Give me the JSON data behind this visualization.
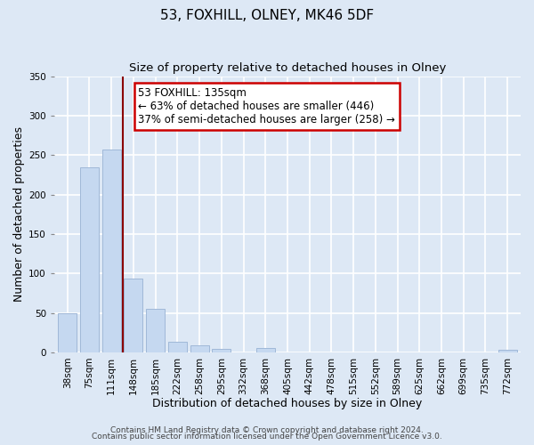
{
  "title": "53, FOXHILL, OLNEY, MK46 5DF",
  "subtitle": "Size of property relative to detached houses in Olney",
  "xlabel": "Distribution of detached houses by size in Olney",
  "ylabel": "Number of detached properties",
  "categories": [
    "38sqm",
    "75sqm",
    "111sqm",
    "148sqm",
    "185sqm",
    "222sqm",
    "258sqm",
    "295sqm",
    "332sqm",
    "368sqm",
    "405sqm",
    "442sqm",
    "478sqm",
    "515sqm",
    "552sqm",
    "589sqm",
    "625sqm",
    "662sqm",
    "699sqm",
    "735sqm",
    "772sqm"
  ],
  "values": [
    50,
    235,
    257,
    93,
    55,
    13,
    9,
    4,
    0,
    5,
    0,
    0,
    0,
    0,
    0,
    0,
    0,
    0,
    0,
    0,
    3
  ],
  "bar_color": "#c5d8f0",
  "bar_edge_color": "#a0b8d8",
  "vline_color": "#8b0000",
  "vline_x_index": 3,
  "annotation_title": "53 FOXHILL: 135sqm",
  "annotation_line1": "← 63% of detached houses are smaller (446)",
  "annotation_line2": "37% of semi-detached houses are larger (258) →",
  "annotation_box_color": "#ffffff",
  "annotation_box_edge_color": "#cc0000",
  "ylim": [
    0,
    350
  ],
  "yticks": [
    0,
    50,
    100,
    150,
    200,
    250,
    300,
    350
  ],
  "footer1": "Contains HM Land Registry data © Crown copyright and database right 2024.",
  "footer2": "Contains public sector information licensed under the Open Government Licence v3.0.",
  "bg_color": "#dde8f5",
  "plot_bg_color": "#dde8f5",
  "grid_color": "#ffffff",
  "title_fontsize": 11,
  "subtitle_fontsize": 9.5,
  "axis_label_fontsize": 9,
  "tick_fontsize": 7.5,
  "footer_fontsize": 6.5,
  "ann_fontsize": 8.5
}
